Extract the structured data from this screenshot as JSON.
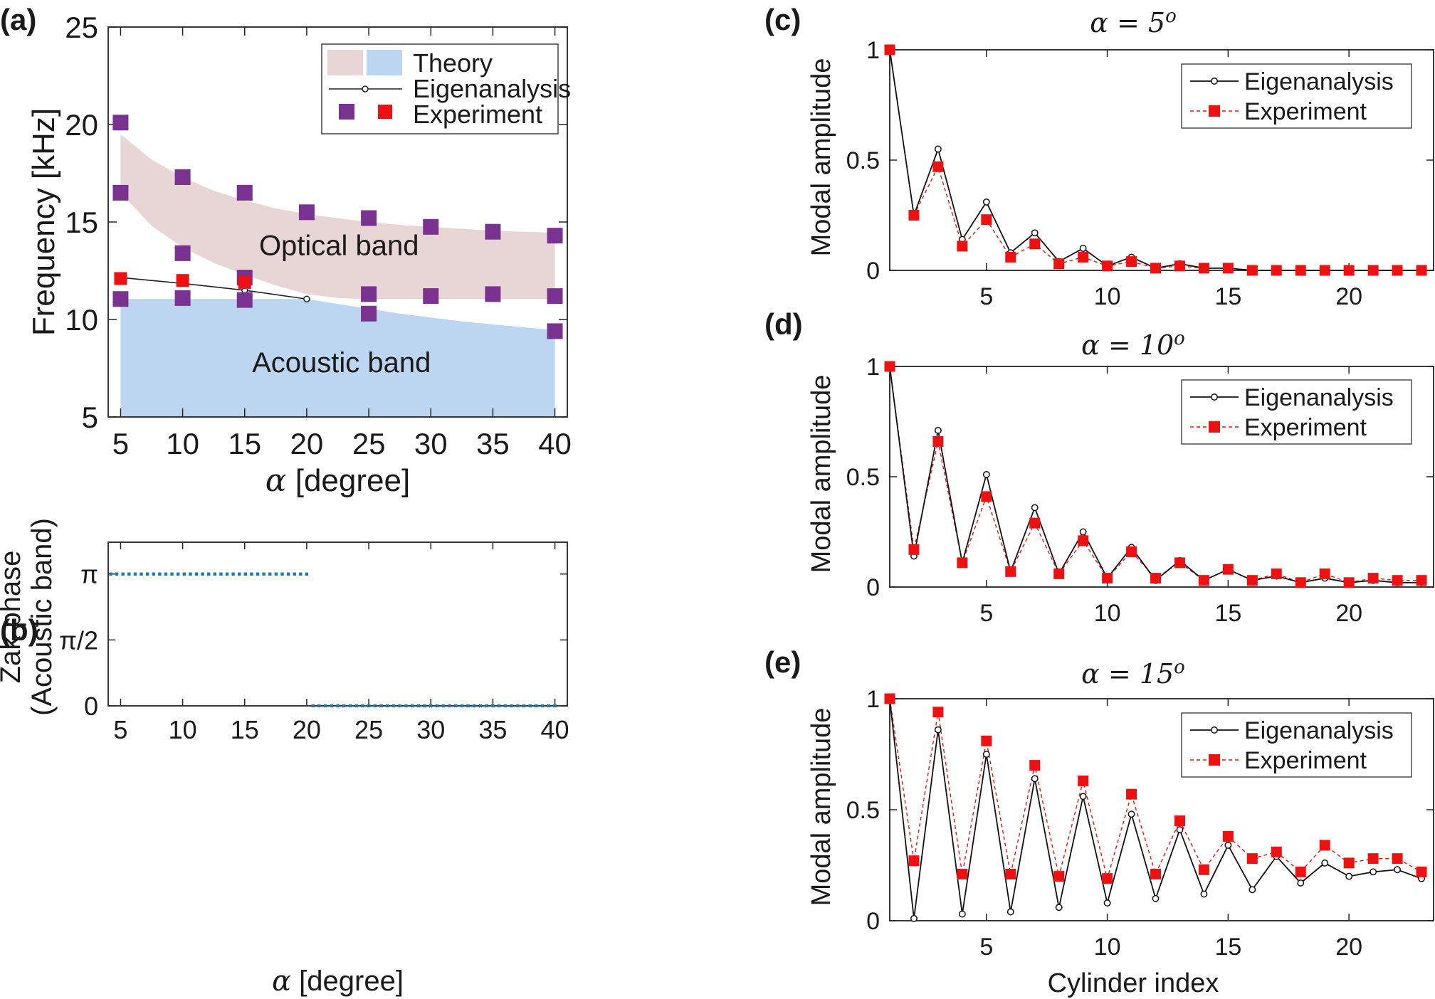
{
  "panel_labels": {
    "a": "(a)",
    "b": "(b)",
    "c": "(c)",
    "d": "(d)",
    "e": "(e)"
  },
  "colors": {
    "optical_fill": "#e8d5d6",
    "acoustic_fill": "#bcd6f2",
    "purple": "#7a3290",
    "red": "#ee1111",
    "black": "#111111",
    "zak_blue": "#1f77b4",
    "dashed_red": "#ee1111"
  },
  "chart_data": [
    {
      "id": "a",
      "type": "scatter",
      "title": "",
      "xlabel_symbol": "α",
      "xlabel": "[degree]",
      "ylabel": "Frequency [kHz]",
      "xlim": [
        4,
        41
      ],
      "ylim": [
        5,
        25
      ],
      "xticks": [
        5,
        10,
        15,
        20,
        25,
        30,
        35,
        40
      ],
      "yticks": [
        5,
        10,
        15,
        20,
        25
      ],
      "legend": {
        "placement": "top-right",
        "entries": [
          "Theory",
          "Eigenanalysis",
          "Experiment"
        ]
      },
      "annotations": [
        "Optical band",
        "Acoustic band"
      ],
      "theory_optical_band": {
        "x": [
          5,
          7.5,
          10,
          12.5,
          15,
          17.5,
          20,
          22.5,
          25,
          27.5,
          30,
          32.5,
          35,
          37.5,
          40
        ],
        "upper": [
          19.5,
          18.2,
          17.3,
          16.6,
          16.1,
          15.7,
          15.4,
          15.2,
          15.0,
          14.85,
          14.75,
          14.65,
          14.55,
          14.5,
          14.45
        ],
        "lower": [
          16.5,
          14.8,
          13.7,
          12.9,
          12.3,
          11.75,
          11.3,
          11.1,
          11.05,
          11.05,
          11.05,
          11.05,
          11.05,
          11.05,
          11.05
        ]
      },
      "theory_acoustic_band": {
        "x": [
          5,
          10,
          15,
          20,
          22.5,
          25,
          27.5,
          30,
          32.5,
          35,
          37.5,
          40
        ],
        "upper": [
          11.05,
          11.05,
          11.05,
          11.05,
          10.8,
          10.55,
          10.3,
          10.1,
          9.9,
          9.75,
          9.6,
          9.45
        ],
        "lower": [
          5,
          5,
          5,
          5,
          5,
          5,
          5,
          5,
          5,
          5,
          5,
          5
        ]
      },
      "eigenanalysis": {
        "x": [
          5,
          10,
          15,
          20
        ],
        "y": [
          12.15,
          11.85,
          11.5,
          11.05
        ]
      },
      "experiment_purple": {
        "x": [
          5,
          5,
          5,
          10,
          10,
          10,
          15,
          15,
          15,
          20,
          25,
          25,
          25,
          30,
          30,
          35,
          35,
          40,
          40,
          40
        ],
        "y": [
          20.1,
          16.5,
          11.05,
          17.3,
          13.4,
          11.1,
          16.5,
          12.15,
          11.0,
          15.5,
          15.2,
          11.3,
          10.3,
          14.75,
          11.2,
          14.5,
          11.3,
          14.3,
          11.2,
          9.4
        ]
      },
      "experiment_red": {
        "x": [
          5,
          10,
          15
        ],
        "y": [
          12.1,
          12.0,
          11.9
        ]
      }
    },
    {
      "id": "b",
      "type": "scatter",
      "title": "",
      "xlabel_symbol": "α",
      "xlabel": "[degree]",
      "ylabel_lines": [
        "Zak phase",
        "(Acoustic band)"
      ],
      "xlim": [
        4,
        41
      ],
      "ylim": [
        0,
        3.9
      ],
      "xticks": [
        5,
        10,
        15,
        20,
        25,
        30,
        35,
        40
      ],
      "yticks": [
        0,
        1.5708,
        3.1416
      ],
      "ytick_labels": [
        "0",
        "π/2",
        "π"
      ],
      "segments": [
        {
          "x_start": 4.2,
          "x_end": 20,
          "value": 3.1416
        },
        {
          "x_start": 20.5,
          "x_end": 40,
          "value": 0
        }
      ]
    },
    {
      "id": "c",
      "type": "line",
      "title_symbol": "α = 5",
      "title_sup": "o",
      "xlabel": "",
      "ylabel": "Modal amplitude",
      "xlim": [
        1,
        23.5
      ],
      "ylim": [
        0,
        1
      ],
      "xticks": [
        5,
        10,
        15,
        20
      ],
      "yticks": [
        0,
        0.5,
        1
      ],
      "ytick_labels": [
        "0",
        "0.5",
        "1"
      ],
      "legend": {
        "placement": "top-right",
        "entries": [
          "Eigenanalysis",
          "Experiment"
        ]
      },
      "series": [
        {
          "name": "Eigenanalysis",
          "x": [
            1,
            2,
            3,
            4,
            5,
            6,
            7,
            8,
            9,
            10,
            11,
            12,
            13,
            14,
            15,
            16,
            17,
            18,
            19,
            20,
            21,
            22,
            23
          ],
          "values": [
            1,
            0.25,
            0.55,
            0.14,
            0.31,
            0.08,
            0.17,
            0.04,
            0.1,
            0.02,
            0.06,
            0.01,
            0.03,
            0.01,
            0.01,
            0,
            0,
            0,
            0,
            0,
            0,
            0,
            0
          ]
        },
        {
          "name": "Experiment",
          "x": [
            1,
            2,
            3,
            4,
            5,
            6,
            7,
            8,
            9,
            10,
            11,
            12,
            13,
            14,
            15,
            16,
            17,
            18,
            19,
            20,
            21,
            22,
            23
          ],
          "values": [
            1,
            0.25,
            0.47,
            0.11,
            0.23,
            0.06,
            0.12,
            0.03,
            0.06,
            0.02,
            0.04,
            0.01,
            0.02,
            0.01,
            0.01,
            0,
            0,
            0,
            0,
            0,
            0,
            0,
            0
          ]
        }
      ]
    },
    {
      "id": "d",
      "type": "line",
      "title_symbol": "α = 10",
      "title_sup": "o",
      "xlabel": "",
      "ylabel": "Modal amplitude",
      "xlim": [
        1,
        23.5
      ],
      "ylim": [
        0,
        1
      ],
      "xticks": [
        5,
        10,
        15,
        20
      ],
      "yticks": [
        0,
        0.5,
        1
      ],
      "ytick_labels": [
        "0",
        "0.5",
        "1"
      ],
      "legend": {
        "placement": "top-right",
        "entries": [
          "Eigenanalysis",
          "Experiment"
        ]
      },
      "series": [
        {
          "name": "Eigenanalysis",
          "x": [
            1,
            2,
            3,
            4,
            5,
            6,
            7,
            8,
            9,
            10,
            11,
            12,
            13,
            14,
            15,
            16,
            17,
            18,
            19,
            20,
            21,
            22,
            23
          ],
          "values": [
            1,
            0.14,
            0.71,
            0.11,
            0.51,
            0.07,
            0.36,
            0.06,
            0.25,
            0.04,
            0.18,
            0.03,
            0.12,
            0.03,
            0.08,
            0.03,
            0.05,
            0.02,
            0.04,
            0.02,
            0.03,
            0.02,
            0.02
          ]
        },
        {
          "name": "Experiment",
          "x": [
            1,
            2,
            3,
            4,
            5,
            6,
            7,
            8,
            9,
            10,
            11,
            12,
            13,
            14,
            15,
            16,
            17,
            18,
            19,
            20,
            21,
            22,
            23
          ],
          "values": [
            1,
            0.17,
            0.66,
            0.11,
            0.41,
            0.07,
            0.29,
            0.06,
            0.21,
            0.04,
            0.16,
            0.04,
            0.11,
            0.03,
            0.08,
            0.03,
            0.06,
            0.02,
            0.06,
            0.02,
            0.04,
            0.03,
            0.03
          ]
        }
      ]
    },
    {
      "id": "e",
      "type": "line",
      "title_symbol": "α = 15",
      "title_sup": "o",
      "xlabel": "Cylinder index",
      "ylabel": "Modal amplitude",
      "xlim": [
        1,
        23.5
      ],
      "ylim": [
        0,
        1
      ],
      "xticks": [
        5,
        10,
        15,
        20
      ],
      "yticks": [
        0,
        0.5,
        1
      ],
      "ytick_labels": [
        "0",
        "0.5",
        "1"
      ],
      "legend": {
        "placement": "top-right",
        "entries": [
          "Eigenanalysis",
          "Experiment"
        ]
      },
      "series": [
        {
          "name": "Eigenanalysis",
          "x": [
            1,
            2,
            3,
            4,
            5,
            6,
            7,
            8,
            9,
            10,
            11,
            12,
            13,
            14,
            15,
            16,
            17,
            18,
            19,
            20,
            21,
            22,
            23
          ],
          "values": [
            1,
            0.01,
            0.86,
            0.03,
            0.75,
            0.04,
            0.64,
            0.06,
            0.56,
            0.08,
            0.48,
            0.1,
            0.41,
            0.12,
            0.34,
            0.14,
            0.29,
            0.17,
            0.26,
            0.2,
            0.22,
            0.23,
            0.19
          ]
        },
        {
          "name": "Experiment",
          "x": [
            1,
            2,
            3,
            4,
            5,
            6,
            7,
            8,
            9,
            10,
            11,
            12,
            13,
            14,
            15,
            16,
            17,
            18,
            19,
            20,
            21,
            22,
            23
          ],
          "values": [
            1,
            0.27,
            0.94,
            0.21,
            0.81,
            0.21,
            0.7,
            0.2,
            0.63,
            0.19,
            0.57,
            0.21,
            0.45,
            0.23,
            0.38,
            0.28,
            0.31,
            0.22,
            0.34,
            0.26,
            0.28,
            0.28,
            0.22
          ]
        }
      ]
    }
  ]
}
